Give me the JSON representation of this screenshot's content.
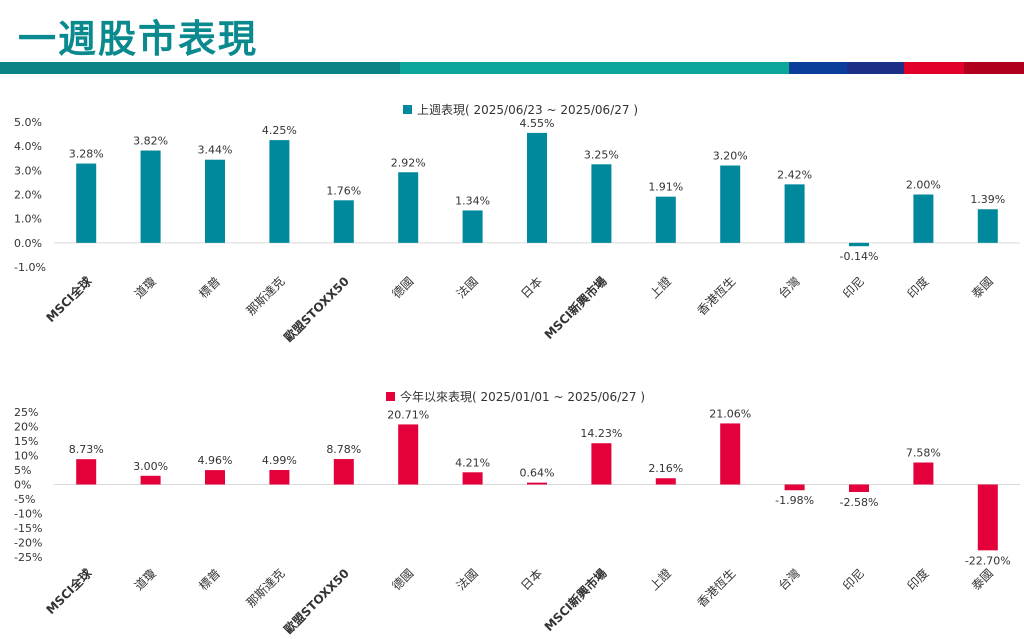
{
  "page": {
    "title": "一週股市表現",
    "band_colors": [
      "#0b8486",
      "#0aa79a",
      "#0a3e9a",
      "#1b2f86",
      "#e2002a",
      "#b0001e"
    ]
  },
  "chart_data": [
    {
      "type": "bar",
      "legend": "上週表現( 2025/06/23 ~ 2025/06/27 )",
      "color": "#00889c",
      "categories": [
        "MSCI全球",
        "道瓊",
        "標普",
        "那斯達克",
        "歐盟STOXX50",
        "德國",
        "法國",
        "日本",
        "MSCI新興市場",
        "上證",
        "香港恆生",
        "台灣",
        "印尼",
        "印度",
        "泰國"
      ],
      "values": [
        3.28,
        3.82,
        3.44,
        4.25,
        1.76,
        2.92,
        1.34,
        4.55,
        3.25,
        1.91,
        3.2,
        2.42,
        -0.14,
        2.0,
        1.39
      ],
      "data_labels": [
        "3.28%",
        "3.82%",
        "3.44%",
        "4.25%",
        "1.76%",
        "2.92%",
        "1.34%",
        "4.55%",
        "3.25%",
        "1.91%",
        "3.20%",
        "2.42%",
        "-0.14%",
        "2.00%",
        "1.39%"
      ],
      "ylim": [
        -1.0,
        5.0
      ],
      "yticks": [
        5.0,
        4.0,
        3.0,
        2.0,
        1.0,
        0.0,
        -1.0
      ],
      "ytick_labels": [
        "5.0%",
        "4.0%",
        "3.0%",
        "2.0%",
        "1.0%",
        "0.0%",
        "-1.0%"
      ]
    },
    {
      "type": "bar",
      "legend": "今年以來表現( 2025/01/01 ~ 2025/06/27 )",
      "color": "#e4003b",
      "categories": [
        "MSCI全球",
        "道瓊",
        "標普",
        "那斯達克",
        "歐盟STOXX50",
        "德國",
        "法國",
        "日本",
        "MSCI新興市場",
        "上證",
        "香港恆生",
        "台灣",
        "印尼",
        "印度",
        "泰國"
      ],
      "values": [
        8.73,
        3.0,
        4.96,
        4.99,
        8.78,
        20.71,
        4.21,
        0.64,
        14.23,
        2.16,
        21.06,
        -1.98,
        -2.58,
        7.58,
        -22.7
      ],
      "data_labels": [
        "8.73%",
        "3.00%",
        "4.96%",
        "4.99%",
        "8.78%",
        "20.71%",
        "4.21%",
        "0.64%",
        "14.23%",
        "2.16%",
        "21.06%",
        "-1.98%",
        "-2.58%",
        "7.58%",
        "-22.70%"
      ],
      "ylim": [
        -25,
        25
      ],
      "yticks": [
        25,
        20,
        15,
        10,
        5,
        0,
        -5,
        -10,
        -15,
        -20,
        -25
      ],
      "ytick_labels": [
        "25%",
        "20%",
        "15%",
        "10%",
        "5%",
        "0%",
        "-5%",
        "-10%",
        "-15%",
        "-20%",
        "-25%"
      ]
    }
  ]
}
